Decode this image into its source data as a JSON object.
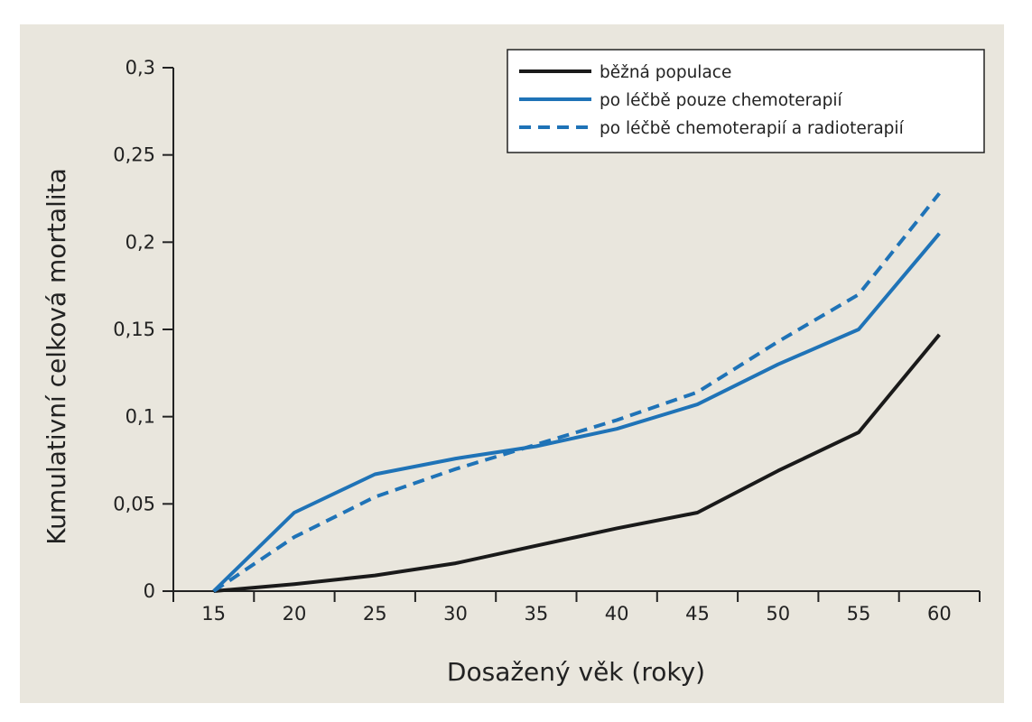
{
  "chart_data": {
    "type": "line",
    "xlabel": "Dosažený věk (roky)",
    "ylabel": "Kumulativní celková mortalita",
    "categories": [
      "15",
      "20",
      "25",
      "30",
      "35",
      "40",
      "45",
      "50",
      "55",
      "60"
    ],
    "x": [
      15,
      20,
      25,
      30,
      35,
      40,
      45,
      50,
      55,
      60
    ],
    "yticks": [
      "0",
      "0,05",
      "0,1",
      "0,15",
      "0,2",
      "0,25",
      "0,3"
    ],
    "ytick_values": [
      0,
      0.05,
      0.1,
      0.15,
      0.2,
      0.25,
      0.3
    ],
    "ylim": [
      0,
      0.3
    ],
    "grid": false,
    "legend_position": "top-right",
    "series": [
      {
        "name": "běžná populace",
        "color": "#1a1a1a",
        "dash": "solid",
        "values": [
          0,
          0.004,
          0.009,
          0.016,
          0.026,
          0.036,
          0.045,
          0.069,
          0.091,
          0.147
        ]
      },
      {
        "name": "po léčbě pouze chemoterapií",
        "color": "#1f73b7",
        "dash": "solid",
        "values": [
          0,
          0.045,
          0.067,
          0.076,
          0.083,
          0.093,
          0.107,
          0.13,
          0.15,
          0.205
        ]
      },
      {
        "name": "po léčbě chemoterapií a radioterapií",
        "color": "#1f73b7",
        "dash": "dashed",
        "values": [
          0,
          0.031,
          0.054,
          0.07,
          0.084,
          0.098,
          0.114,
          0.143,
          0.17,
          0.228
        ]
      }
    ]
  }
}
